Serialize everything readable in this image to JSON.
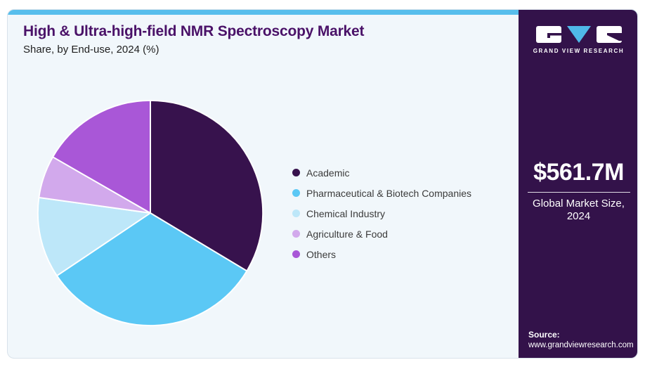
{
  "header": {
    "title": "High & Ultra-high-field NMR Spectroscopy Market",
    "subtitle": "Share, by End-use, 2024 (%)"
  },
  "chart_data": {
    "type": "pie",
    "title": "High & Ultra-high-field NMR Spectroscopy Market Share, by End-use, 2024 (%)",
    "categories": [
      "Academic",
      "Pharmaceutical & Biotech Companies",
      "Chemical Industry",
      "Agriculture & Food",
      "Others"
    ],
    "values": [
      33.6,
      32.0,
      11.6,
      6.1,
      16.7
    ],
    "colors": [
      "#37124D",
      "#5BC8F5",
      "#BDE7F9",
      "#D2A9EC",
      "#A957D7"
    ],
    "units": "%",
    "start_angle_deg": 0,
    "direction": "clockwise",
    "legend_position": "right",
    "slice_separator_color": "#FFFFFF"
  },
  "sidebar": {
    "logo_text": "GRAND VIEW RESEARCH",
    "market_size": "$561.7M",
    "market_caption": "Global Market Size, 2024",
    "source_label": "Source:",
    "source_url": "www.grandviewresearch.com"
  },
  "colors": {
    "card_background": "#F1F7FB",
    "card_border": "#D8E2EA",
    "top_strip": "#57BEEC",
    "sidebar_background": "#33124A",
    "title_text": "#4A1268",
    "body_text": "#3B3B3B",
    "logo_triangle": "#4FB9E8"
  }
}
